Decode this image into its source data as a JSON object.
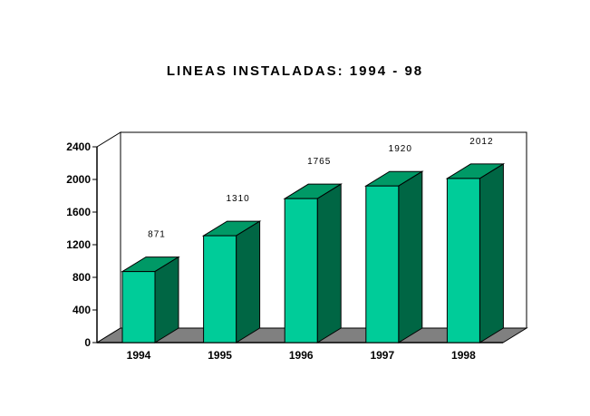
{
  "chart_data": {
    "type": "bar",
    "title": "LINEAS INSTALADAS: 1994 - 98",
    "categories": [
      "1994",
      "1995",
      "1996",
      "1997",
      "1998"
    ],
    "values": [
      871,
      1310,
      1765,
      1920,
      2012
    ],
    "data_labels": [
      "871",
      "1310",
      "1765",
      "1920",
      "2012"
    ],
    "yticks": [
      0,
      400,
      800,
      1200,
      1600,
      2000,
      2400
    ],
    "ylim": [
      0,
      2400
    ],
    "xlabel": "",
    "ylabel": "",
    "grid": false,
    "style": "3d-column",
    "colors": {
      "bar_front": "#00CC99",
      "bar_side": "#006644",
      "bar_top": "#009966",
      "floor": "#808080",
      "wall": "#ffffff"
    }
  }
}
